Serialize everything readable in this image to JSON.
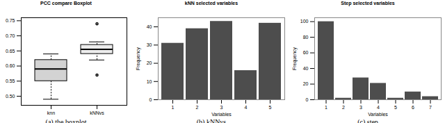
{
  "chart_data": [
    {
      "type": "box",
      "title": "PCC compare Boxplot",
      "caption": "(a) the boxplot",
      "categories": [
        "knn",
        "kNNvs"
      ],
      "boxes": [
        {
          "min": 0.49,
          "q1": 0.55,
          "median": 0.59,
          "q3": 0.62,
          "max": 0.64,
          "outliers": []
        },
        {
          "min": 0.62,
          "q1": 0.64,
          "median": 0.655,
          "q3": 0.67,
          "max": 0.68,
          "outliers": [
            0.57,
            0.74
          ]
        }
      ],
      "colors": [
        "#d3d3d3",
        "#ececec"
      ],
      "ylim": [
        0.47,
        0.76
      ],
      "yticks": [
        {
          "value": 0.5,
          "label": "0.50"
        },
        0.55,
        {
          "value": 0.6,
          "label": "0.60"
        },
        0.65,
        {
          "value": 0.7,
          "label": "0.70"
        },
        0.75
      ],
      "grid": false
    },
    {
      "type": "bar",
      "title": "kNN selected variables",
      "caption": "(b) kNNvs",
      "x_label": "Variables",
      "y_label": "Frequency",
      "categories": [
        "1",
        "2",
        "3",
        "4",
        "5"
      ],
      "values": [
        31,
        39,
        43,
        16,
        42
      ],
      "color": "#4d4d4d",
      "ylim": [
        0,
        45
      ],
      "yticks": [
        0,
        10,
        20,
        30,
        40
      ],
      "grid": false
    },
    {
      "type": "bar",
      "title": "Step selected variables",
      "caption": "(c) step",
      "x_label": "Variables",
      "y_label": "Frequency",
      "categories": [
        "1",
        "2",
        "3",
        "4",
        "5",
        "6",
        "7"
      ],
      "values": [
        100,
        2,
        28,
        21,
        2,
        10,
        4
      ],
      "color": "#4d4d4d",
      "ylim": [
        0,
        105
      ],
      "yticks": [
        0,
        20,
        40,
        60,
        80,
        100
      ],
      "grid": false
    }
  ]
}
